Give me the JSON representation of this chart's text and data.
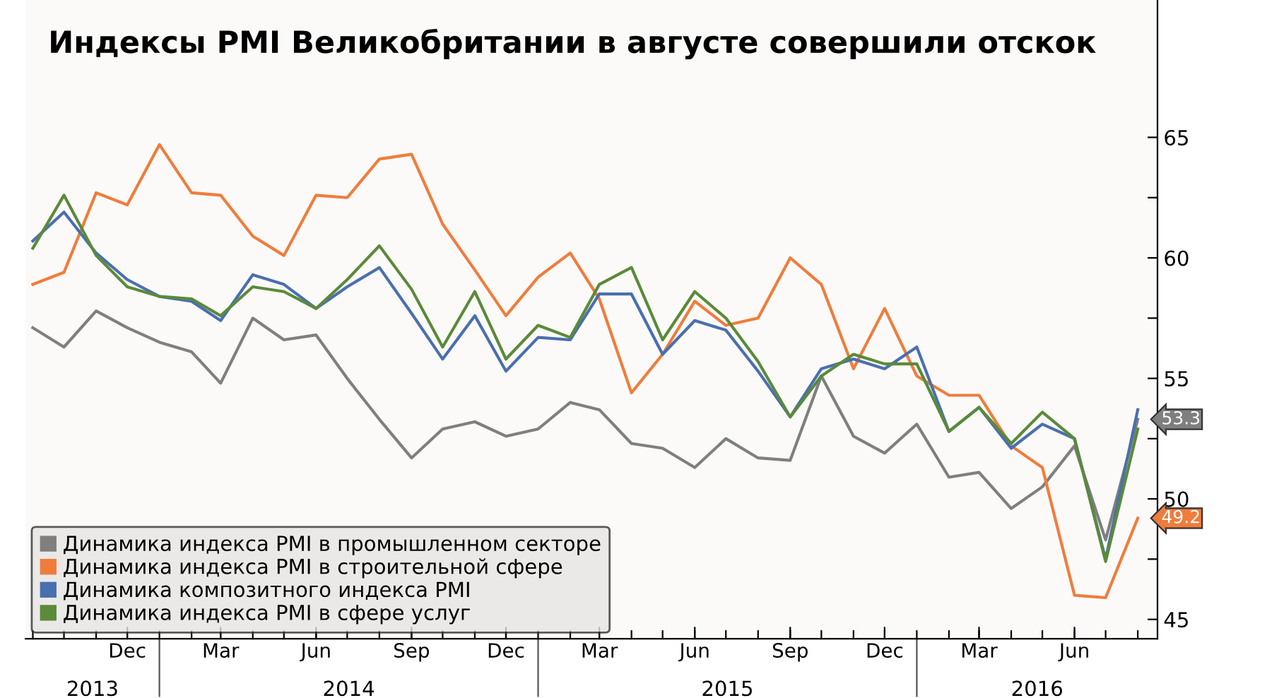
{
  "chart_data": {
    "type": "line",
    "title": "Индексы PMI Великобритании в августе совершили отскок",
    "x": [
      "2013-09",
      "2013-10",
      "2013-11",
      "2013-12",
      "2014-01",
      "2014-02",
      "2014-03",
      "2014-04",
      "2014-05",
      "2014-06",
      "2014-07",
      "2014-08",
      "2014-09",
      "2014-10",
      "2014-11",
      "2014-12",
      "2015-01",
      "2015-02",
      "2015-03",
      "2015-04",
      "2015-05",
      "2015-06",
      "2015-07",
      "2015-08",
      "2015-09",
      "2015-10",
      "2015-11",
      "2015-12",
      "2016-01",
      "2016-02",
      "2016-03",
      "2016-04",
      "2016-05",
      "2016-06",
      "2016-07",
      "2016-08"
    ],
    "series": [
      {
        "name": "Динамика индекса PMI в промышленном секторе",
        "color": "#7f7f7f",
        "values": [
          57.1,
          56.3,
          57.8,
          57.1,
          56.5,
          56.1,
          54.8,
          57.5,
          56.6,
          56.8,
          55.0,
          53.3,
          51.7,
          52.9,
          53.2,
          52.6,
          52.9,
          54.0,
          53.7,
          52.3,
          52.1,
          51.3,
          52.5,
          51.7,
          51.6,
          55.1,
          52.6,
          51.9,
          53.1,
          50.9,
          51.1,
          49.6,
          50.5,
          52.2,
          48.3,
          53.3
        ],
        "value_labels": [
          null,
          null,
          null,
          null,
          null,
          null,
          null,
          null,
          null,
          null,
          null,
          null,
          null,
          null,
          null,
          null,
          null,
          null,
          null,
          null,
          null,
          null,
          null,
          null,
          null,
          null,
          null,
          null,
          null,
          null,
          null,
          null,
          null,
          null,
          null,
          "53.3"
        ]
      },
      {
        "name": "Динамика индекса PMI в строительной сфере",
        "color": "#f07c3c",
        "values": [
          58.9,
          59.4,
          62.7,
          62.2,
          64.7,
          62.7,
          62.6,
          60.9,
          60.1,
          62.6,
          62.5,
          64.1,
          64.3,
          61.4,
          59.5,
          57.6,
          59.2,
          60.2,
          58.3,
          54.4,
          56.0,
          58.2,
          57.2,
          57.5,
          60.0,
          58.9,
          55.4,
          57.9,
          55.1,
          54.3,
          54.3,
          52.2,
          51.3,
          46.0,
          45.9,
          49.2
        ],
        "value_labels": [
          null,
          null,
          null,
          null,
          null,
          null,
          null,
          null,
          null,
          null,
          null,
          null,
          null,
          null,
          null,
          null,
          null,
          null,
          null,
          null,
          null,
          null,
          null,
          null,
          null,
          null,
          null,
          null,
          null,
          null,
          null,
          null,
          null,
          null,
          null,
          "49.2"
        ]
      },
      {
        "name": "Динамика композитного индекса PMI",
        "color": "#4a6fb0",
        "values": [
          60.7,
          61.9,
          60.2,
          59.1,
          58.4,
          58.2,
          57.4,
          59.3,
          58.9,
          57.9,
          58.8,
          59.6,
          57.7,
          55.8,
          57.6,
          55.3,
          56.7,
          56.6,
          58.5,
          58.5,
          56.0,
          57.4,
          57.0,
          55.3,
          53.4,
          55.4,
          55.8,
          55.4,
          56.3,
          52.8,
          53.8,
          52.1,
          53.1,
          52.5,
          47.5,
          53.7
        ]
      },
      {
        "name": "Динамика индекса PMI в сфере услуг",
        "color": "#5a8a3a",
        "values": [
          60.4,
          62.6,
          60.1,
          58.8,
          58.4,
          58.3,
          57.6,
          58.8,
          58.6,
          57.9,
          59.1,
          60.5,
          58.7,
          56.3,
          58.6,
          55.8,
          57.2,
          56.7,
          58.9,
          59.6,
          56.6,
          58.6,
          57.5,
          55.7,
          53.4,
          55.1,
          56.0,
          55.6,
          55.6,
          52.8,
          53.8,
          52.3,
          53.6,
          52.5,
          47.4,
          52.9
        ]
      }
    ],
    "xlim": [
      "2013-08-25",
      "2016-08-20"
    ],
    "xticks": [
      {
        "value": "2013-12",
        "label": "Dec"
      },
      {
        "value": "2014-03",
        "label": "Mar"
      },
      {
        "value": "2014-06",
        "label": "Jun"
      },
      {
        "value": "2014-09",
        "label": "Sep"
      },
      {
        "value": "2014-12",
        "label": "Dec"
      },
      {
        "value": "2015-03",
        "label": "Mar"
      },
      {
        "value": "2015-06",
        "label": "Jun"
      },
      {
        "value": "2015-09",
        "label": "Sep"
      },
      {
        "value": "2015-12",
        "label": "Dec"
      },
      {
        "value": "2016-03",
        "label": "Mar"
      },
      {
        "value": "2016-06",
        "label": "Jun"
      }
    ],
    "ylim": [
      44.2,
      70.7
    ],
    "yticks": [
      45,
      {
        "value": 47.5,
        "label": null
      },
      50,
      {
        "value": 52.5,
        "label": null
      },
      55,
      {
        "value": 57.5,
        "label": null
      },
      60,
      {
        "value": 62.5,
        "label": null
      },
      65
    ],
    "annotations": [
      "2013",
      "2014",
      "2015",
      "2016"
    ],
    "legend": "bottom left",
    "grid": false,
    "marker": "none",
    "line_style": "solid"
  }
}
